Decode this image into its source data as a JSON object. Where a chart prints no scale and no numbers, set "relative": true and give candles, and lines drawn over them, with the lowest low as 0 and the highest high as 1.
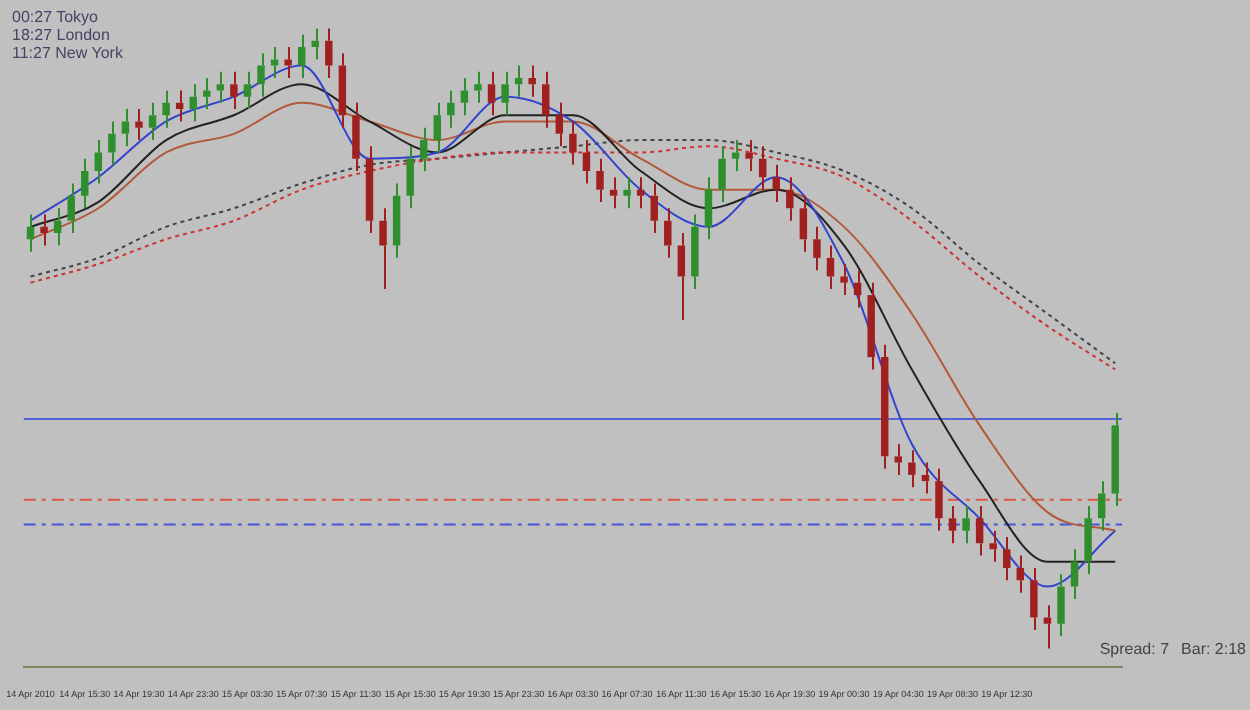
{
  "chart_data": {
    "type": "candlestick",
    "relative": true,
    "categories": [
      "14 Apr 2010",
      null,
      null,
      null,
      "14 Apr 15:30",
      null,
      null,
      null,
      "14 Apr 19:30",
      null,
      null,
      null,
      "14 Apr 23:30",
      null,
      null,
      null,
      "15 Apr 03:30",
      null,
      null,
      null,
      "15 Apr 07:30",
      null,
      null,
      null,
      "15 Apr 11:30",
      null,
      null,
      null,
      "15 Apr 15:30",
      null,
      null,
      null,
      "15 Apr 19:30",
      null,
      null,
      null,
      "15 Apr 23:30",
      null,
      null,
      null,
      "16 Apr 03:30",
      null,
      null,
      null,
      "16 Apr 07:30",
      null,
      null,
      null,
      "16 Apr 11:30",
      null,
      null,
      null,
      "16 Apr 15:30",
      null,
      null,
      null,
      "16 Apr 19:30",
      null,
      null,
      null,
      "19 Apr 00:30",
      null,
      null,
      null,
      "19 Apr 04:30",
      null,
      null,
      null,
      "19 Apr 08:30",
      null,
      null,
      null,
      "19 Apr 12:30",
      null,
      null,
      null,
      null,
      null,
      null,
      null,
      null
    ],
    "ohlc": [
      [
        0.66,
        0.7,
        0.64,
        0.68
      ],
      [
        0.68,
        0.7,
        0.65,
        0.67
      ],
      [
        0.67,
        0.71,
        0.65,
        0.69
      ],
      [
        0.69,
        0.75,
        0.67,
        0.73
      ],
      [
        0.73,
        0.79,
        0.71,
        0.77
      ],
      [
        0.77,
        0.82,
        0.75,
        0.8
      ],
      [
        0.8,
        0.85,
        0.78,
        0.83
      ],
      [
        0.83,
        0.87,
        0.81,
        0.85
      ],
      [
        0.85,
        0.87,
        0.82,
        0.84
      ],
      [
        0.84,
        0.88,
        0.82,
        0.86
      ],
      [
        0.86,
        0.9,
        0.84,
        0.88
      ],
      [
        0.88,
        0.9,
        0.85,
        0.87
      ],
      [
        0.87,
        0.91,
        0.85,
        0.89
      ],
      [
        0.89,
        0.92,
        0.87,
        0.9
      ],
      [
        0.9,
        0.93,
        0.88,
        0.91
      ],
      [
        0.91,
        0.93,
        0.87,
        0.89
      ],
      [
        0.89,
        0.93,
        0.87,
        0.91
      ],
      [
        0.91,
        0.96,
        0.89,
        0.94
      ],
      [
        0.94,
        0.97,
        0.92,
        0.95
      ],
      [
        0.95,
        0.97,
        0.92,
        0.94
      ],
      [
        0.94,
        0.99,
        0.92,
        0.97
      ],
      [
        0.97,
        1.0,
        0.95,
        0.98
      ],
      [
        0.98,
        1.0,
        0.92,
        0.94
      ],
      [
        0.94,
        0.96,
        0.84,
        0.86
      ],
      [
        0.86,
        0.88,
        0.77,
        0.79
      ],
      [
        0.79,
        0.81,
        0.67,
        0.69
      ],
      [
        0.69,
        0.71,
        0.58,
        0.65
      ],
      [
        0.65,
        0.75,
        0.63,
        0.73
      ],
      [
        0.73,
        0.81,
        0.71,
        0.79
      ],
      [
        0.79,
        0.84,
        0.77,
        0.82
      ],
      [
        0.82,
        0.88,
        0.8,
        0.86
      ],
      [
        0.86,
        0.9,
        0.84,
        0.88
      ],
      [
        0.88,
        0.92,
        0.86,
        0.9
      ],
      [
        0.9,
        0.93,
        0.88,
        0.91
      ],
      [
        0.91,
        0.93,
        0.86,
        0.88
      ],
      [
        0.88,
        0.93,
        0.86,
        0.91
      ],
      [
        0.91,
        0.94,
        0.89,
        0.92
      ],
      [
        0.92,
        0.94,
        0.89,
        0.91
      ],
      [
        0.91,
        0.93,
        0.84,
        0.86
      ],
      [
        0.86,
        0.88,
        0.81,
        0.83
      ],
      [
        0.83,
        0.85,
        0.78,
        0.8
      ],
      [
        0.8,
        0.82,
        0.75,
        0.77
      ],
      [
        0.77,
        0.79,
        0.72,
        0.74
      ],
      [
        0.74,
        0.76,
        0.71,
        0.73
      ],
      [
        0.73,
        0.76,
        0.71,
        0.74
      ],
      [
        0.74,
        0.76,
        0.71,
        0.73
      ],
      [
        0.73,
        0.75,
        0.67,
        0.69
      ],
      [
        0.69,
        0.71,
        0.63,
        0.65
      ],
      [
        0.65,
        0.67,
        0.53,
        0.6
      ],
      [
        0.6,
        0.7,
        0.58,
        0.68
      ],
      [
        0.68,
        0.76,
        0.66,
        0.74
      ],
      [
        0.74,
        0.81,
        0.72,
        0.79
      ],
      [
        0.79,
        0.82,
        0.77,
        0.8
      ],
      [
        0.8,
        0.82,
        0.77,
        0.79
      ],
      [
        0.79,
        0.81,
        0.74,
        0.76
      ],
      [
        0.76,
        0.78,
        0.72,
        0.74
      ],
      [
        0.74,
        0.76,
        0.69,
        0.71
      ],
      [
        0.71,
        0.73,
        0.64,
        0.66
      ],
      [
        0.66,
        0.68,
        0.61,
        0.63
      ],
      [
        0.63,
        0.65,
        0.58,
        0.6
      ],
      [
        0.6,
        0.62,
        0.57,
        0.59
      ],
      [
        0.59,
        0.61,
        0.55,
        0.57
      ],
      [
        0.57,
        0.59,
        0.45,
        0.47
      ],
      [
        0.47,
        0.49,
        0.29,
        0.31
      ],
      [
        0.31,
        0.33,
        0.28,
        0.3
      ],
      [
        0.3,
        0.32,
        0.26,
        0.28
      ],
      [
        0.28,
        0.3,
        0.25,
        0.27
      ],
      [
        0.27,
        0.29,
        0.19,
        0.21
      ],
      [
        0.21,
        0.23,
        0.17,
        0.19
      ],
      [
        0.19,
        0.23,
        0.17,
        0.21
      ],
      [
        0.21,
        0.23,
        0.15,
        0.17
      ],
      [
        0.17,
        0.19,
        0.14,
        0.16
      ],
      [
        0.16,
        0.18,
        0.11,
        0.13
      ],
      [
        0.13,
        0.15,
        0.09,
        0.11
      ],
      [
        0.11,
        0.13,
        0.03,
        0.05
      ],
      [
        0.05,
        0.07,
        0.0,
        0.04
      ],
      [
        0.04,
        0.12,
        0.02,
        0.1
      ],
      [
        0.1,
        0.16,
        0.08,
        0.14
      ],
      [
        0.14,
        0.23,
        0.12,
        0.21
      ],
      [
        0.21,
        0.27,
        0.19,
        0.25
      ],
      [
        0.25,
        0.38,
        0.23,
        0.36
      ]
    ],
    "colors": [
      "#2f8f2f",
      "#a02020",
      "#2f8f2f",
      "#2f8f2f",
      "#2f8f2f",
      "#2f8f2f",
      "#2f8f2f",
      "#2f8f2f",
      "#a02020",
      "#2f8f2f",
      "#2f8f2f",
      "#a02020",
      "#2f8f2f",
      "#2f8f2f",
      "#2f8f2f",
      "#a02020",
      "#2f8f2f",
      "#2f8f2f",
      "#2f8f2f",
      "#a02020",
      "#2f8f2f",
      "#2f8f2f",
      "#a02020",
      "#a02020",
      "#a02020",
      "#a02020",
      "#a02020",
      "#2f8f2f",
      "#2f8f2f",
      "#2f8f2f",
      "#2f8f2f",
      "#2f8f2f",
      "#2f8f2f",
      "#2f8f2f",
      "#a02020",
      "#2f8f2f",
      "#2f8f2f",
      "#a02020",
      "#a02020",
      "#a02020",
      "#a02020",
      "#a02020",
      "#a02020",
      "#a02020",
      "#2f8f2f",
      "#a02020",
      "#a02020",
      "#a02020",
      "#a02020",
      "#2f8f2f",
      "#2f8f2f",
      "#2f8f2f",
      "#2f8f2f",
      "#a02020",
      "#a02020",
      "#a02020",
      "#a02020",
      "#a02020",
      "#a02020",
      "#a02020",
      "#a02020",
      "#a02020",
      "#a02020",
      "#a02020",
      "#a02020",
      "#a02020",
      "#a02020",
      "#a02020",
      "#a02020",
      "#2f8f2f",
      "#a02020",
      "#a02020",
      "#a02020",
      "#a02020",
      "#a02020",
      "#a02020",
      "#2f8f2f",
      "#2f8f2f",
      "#2f8f2f",
      "#2f8f2f",
      "#2f8f2f"
    ],
    "series": [
      {
        "type": "line",
        "color": "#3344cc",
        "values": [
          0.69,
          null,
          null,
          null,
          null,
          0.76,
          null,
          null,
          null,
          null,
          0.85,
          null,
          null,
          null,
          null,
          0.89,
          null,
          null,
          null,
          null,
          0.94,
          null,
          null,
          null,
          null,
          0.79,
          null,
          null,
          null,
          null,
          0.8,
          null,
          null,
          null,
          null,
          0.89,
          null,
          null,
          null,
          null,
          0.85,
          null,
          null,
          null,
          null,
          0.74,
          null,
          null,
          null,
          null,
          0.68,
          null,
          null,
          null,
          null,
          0.76,
          null,
          null,
          null,
          null,
          0.62,
          null,
          null,
          null,
          null,
          0.33,
          null,
          null,
          null,
          null,
          0.21,
          null,
          null,
          null,
          null,
          0.1,
          null,
          null,
          null,
          null,
          0.19
        ]
      },
      {
        "type": "line",
        "color": "#222222",
        "values": [
          0.68,
          null,
          null,
          null,
          null,
          0.72,
          null,
          null,
          null,
          null,
          0.82,
          null,
          null,
          null,
          null,
          0.86,
          null,
          null,
          null,
          null,
          0.91,
          null,
          null,
          null,
          null,
          0.85,
          null,
          null,
          null,
          null,
          0.8,
          null,
          null,
          null,
          null,
          0.86,
          null,
          null,
          null,
          null,
          0.86,
          null,
          null,
          null,
          null,
          0.77,
          null,
          null,
          null,
          null,
          0.71,
          null,
          null,
          null,
          null,
          0.74,
          null,
          null,
          null,
          null,
          0.65,
          null,
          null,
          null,
          null,
          0.45,
          null,
          null,
          null,
          null,
          0.27,
          null,
          null,
          null,
          null,
          0.14,
          null,
          null,
          null,
          null,
          0.14
        ]
      },
      {
        "type": "line",
        "color": "#b05a3a",
        "values": [
          0.66,
          null,
          null,
          null,
          null,
          0.71,
          null,
          null,
          null,
          null,
          0.8,
          null,
          null,
          null,
          null,
          0.83,
          null,
          null,
          null,
          null,
          0.88,
          null,
          null,
          null,
          null,
          0.85,
          null,
          null,
          null,
          null,
          0.82,
          null,
          null,
          null,
          null,
          0.85,
          null,
          null,
          null,
          null,
          0.85,
          null,
          null,
          null,
          null,
          0.79,
          null,
          null,
          null,
          null,
          0.74,
          null,
          null,
          null,
          null,
          0.74,
          null,
          null,
          null,
          null,
          0.68,
          null,
          null,
          null,
          null,
          0.54,
          null,
          null,
          null,
          null,
          0.36,
          null,
          null,
          null,
          null,
          0.22,
          null,
          null,
          null,
          null,
          0.19
        ]
      },
      {
        "type": "line",
        "color": "#cc3333",
        "line_style": "dotted",
        "values": [
          0.59,
          null,
          null,
          null,
          null,
          0.62,
          null,
          null,
          null,
          null,
          0.66,
          null,
          null,
          null,
          null,
          0.69,
          null,
          null,
          null,
          null,
          0.74,
          null,
          null,
          null,
          null,
          0.77,
          null,
          null,
          null,
          null,
          0.79,
          null,
          null,
          null,
          null,
          0.8,
          null,
          null,
          null,
          null,
          0.8,
          null,
          null,
          null,
          null,
          0.8,
          null,
          null,
          null,
          null,
          0.81,
          null,
          null,
          null,
          null,
          0.79,
          null,
          null,
          null,
          null,
          0.76,
          null,
          null,
          null,
          null,
          0.69,
          null,
          null,
          null,
          null,
          0.6,
          null,
          null,
          null,
          null,
          0.52,
          null,
          null,
          null,
          null,
          0.45
        ]
      },
      {
        "type": "line",
        "color": "#444444",
        "line_style": "dotted",
        "values": [
          0.6,
          null,
          null,
          null,
          null,
          0.63,
          null,
          null,
          null,
          null,
          0.68,
          null,
          null,
          null,
          null,
          0.71,
          null,
          null,
          null,
          null,
          0.75,
          null,
          null,
          null,
          null,
          0.78,
          null,
          null,
          null,
          null,
          0.79,
          null,
          null,
          null,
          null,
          0.8,
          null,
          null,
          null,
          null,
          0.81,
          null,
          null,
          null,
          null,
          0.82,
          null,
          null,
          null,
          null,
          0.82,
          null,
          null,
          null,
          null,
          0.8,
          null,
          null,
          null,
          null,
          0.77,
          null,
          null,
          null,
          null,
          0.71,
          null,
          null,
          null,
          null,
          0.62,
          null,
          null,
          null,
          null,
          0.54,
          null,
          null,
          null,
          null,
          0.46
        ]
      }
    ],
    "ref_lines": [
      {
        "axis": "y",
        "value": 0.37,
        "color": "#5560dd",
        "line_style": "solid"
      },
      {
        "axis": "y",
        "value": 0.24,
        "color": "#dd5544",
        "line_style": "dashed"
      },
      {
        "axis": "y",
        "value": 0.2,
        "color": "#4455dd",
        "line_style": "dashed"
      }
    ],
    "annotations": [
      "00:27 Tokyo",
      "18:27 London",
      "11:27 New York",
      "Spread: 7",
      "Bar: 2:18"
    ],
    "marker": "none",
    "legend": false
  }
}
